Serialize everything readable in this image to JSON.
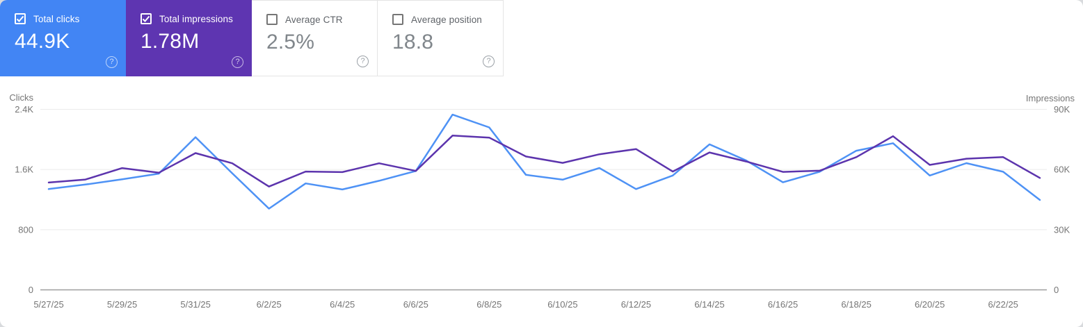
{
  "colors": {
    "clicks_card_bg": "#4285f4",
    "impressions_card_bg": "#5e35b1",
    "clicks_line": "#4e92f5",
    "impressions_line": "#5c34ad",
    "grid_line": "#ebebeb",
    "axis_line": "#9e9e9e",
    "axis_text": "#757575"
  },
  "icons": {
    "help": "?",
    "checkmark": "check"
  },
  "cards": [
    {
      "label": "Total clicks",
      "value": "44.9K",
      "checked": true
    },
    {
      "label": "Total impressions",
      "value": "1.78M",
      "checked": true
    },
    {
      "label": "Average CTR",
      "value": "2.5%",
      "checked": false
    },
    {
      "label": "Average position",
      "value": "18.8",
      "checked": false
    }
  ],
  "chart_data": {
    "type": "line",
    "x": [
      "5/27/25",
      "5/28/25",
      "5/29/25",
      "5/30/25",
      "5/31/25",
      "6/1/25",
      "6/2/25",
      "6/3/25",
      "6/4/25",
      "6/5/25",
      "6/6/25",
      "6/7/25",
      "6/8/25",
      "6/9/25",
      "6/10/25",
      "6/11/25",
      "6/12/25",
      "6/13/25",
      "6/14/25",
      "6/15/25",
      "6/16/25",
      "6/17/25",
      "6/18/25",
      "6/19/25",
      "6/20/25",
      "6/21/25",
      "6/22/25",
      "6/23/25"
    ],
    "x_labeled_every": 2,
    "series": [
      {
        "name": "Clicks",
        "axis": "left",
        "values": [
          1340,
          1400,
          1470,
          1545,
          2030,
          1550,
          1080,
          1415,
          1335,
          1450,
          1580,
          2330,
          2160,
          1530,
          1465,
          1620,
          1340,
          1520,
          1935,
          1720,
          1430,
          1570,
          1850,
          1950,
          1520,
          1685,
          1570,
          1195
        ]
      },
      {
        "name": "Impressions",
        "axis": "right",
        "values": [
          53500,
          55000,
          60700,
          58400,
          68200,
          63100,
          51500,
          59000,
          58700,
          63100,
          59300,
          76900,
          75900,
          66500,
          63300,
          67600,
          70200,
          59000,
          68500,
          64000,
          58800,
          59400,
          66200,
          76600,
          62300,
          65400,
          66200,
          55800
        ]
      }
    ],
    "left_axis": {
      "title": "Clicks",
      "ticks": [
        "0",
        "800",
        "1.6K",
        "2.4K"
      ],
      "min": 0,
      "max": 2400
    },
    "right_axis": {
      "title": "Impressions",
      "ticks": [
        "0",
        "30K",
        "60K",
        "90K"
      ],
      "min": 0,
      "max": 90000
    },
    "grid": "horizontal",
    "legend": "none"
  }
}
